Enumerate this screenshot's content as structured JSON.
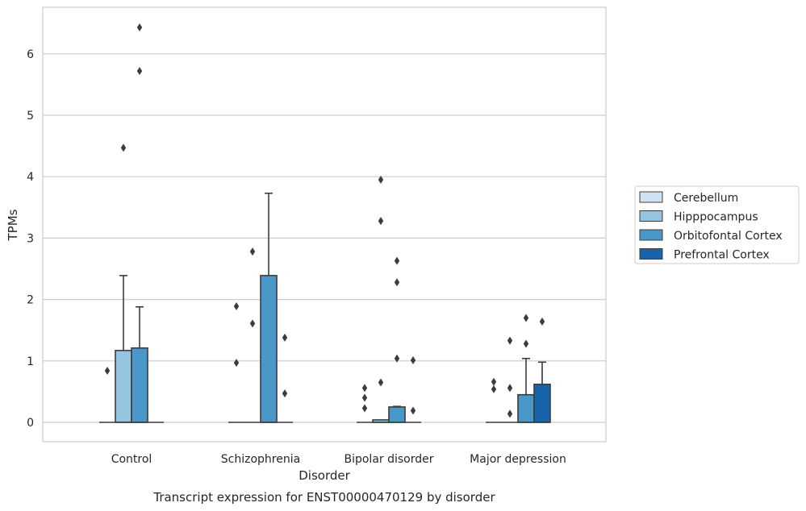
{
  "chart_data": {
    "type": "box",
    "title": "",
    "caption": "Transcript expression for ENST00000470129 by disorder",
    "xlabel": "Disorder",
    "ylabel": "TPMs",
    "ylim": [
      -0.3,
      6.75
    ],
    "yticks": [
      0,
      1,
      2,
      3,
      4,
      5,
      6
    ],
    "grid": true,
    "legend_position": "right",
    "categories": [
      "Control",
      "Schizophrenia",
      "Bipolar disorder",
      "Major depression"
    ],
    "series": [
      {
        "name": "Cerebellum",
        "color": "#d0e1f2",
        "boxes": [
          {
            "category": "Control",
            "q1": 0,
            "median": 0,
            "q3": 0,
            "whisker_low": 0,
            "whisker_high": 0,
            "outliers": [
              0.84
            ]
          },
          {
            "category": "Schizophrenia",
            "q1": 0,
            "median": 0,
            "q3": 0,
            "whisker_low": 0,
            "whisker_high": 0,
            "outliers": [
              1.89,
              0.97
            ]
          },
          {
            "category": "Bipolar disorder",
            "q1": 0,
            "median": 0,
            "q3": 0,
            "whisker_low": 0,
            "whisker_high": 0,
            "outliers": [
              0.56,
              0.4,
              0.23
            ]
          },
          {
            "category": "Major depression",
            "q1": 0,
            "median": 0,
            "q3": 0,
            "whisker_low": 0,
            "whisker_high": 0,
            "outliers": [
              0.66,
              0.54
            ]
          }
        ]
      },
      {
        "name": "Hipppocampus",
        "color": "#94c4df",
        "boxes": [
          {
            "category": "Control",
            "q1": 0,
            "median": 0,
            "q3": 1.17,
            "whisker_low": 0,
            "whisker_high": 2.39,
            "outliers": [
              4.47
            ]
          },
          {
            "category": "Schizophrenia",
            "q1": 0,
            "median": 0,
            "q3": 0,
            "whisker_low": 0,
            "whisker_high": 0,
            "outliers": [
              2.78,
              1.61
            ]
          },
          {
            "category": "Bipolar disorder",
            "q1": 0,
            "median": 0,
            "q3": 0.04,
            "whisker_low": 0,
            "whisker_high": 0.04,
            "outliers": [
              3.95,
              3.28,
              0.65
            ]
          },
          {
            "category": "Major depression",
            "q1": 0,
            "median": 0,
            "q3": 0,
            "whisker_low": 0,
            "whisker_high": 0,
            "outliers": [
              1.33,
              0.56,
              0.14
            ]
          }
        ]
      },
      {
        "name": "Orbitofontal Cortex",
        "color": "#4a98c9",
        "boxes": [
          {
            "category": "Control",
            "q1": 0,
            "median": 0,
            "q3": 1.21,
            "whisker_low": 0,
            "whisker_high": 1.88,
            "outliers": [
              6.43,
              5.72
            ]
          },
          {
            "category": "Schizophrenia",
            "q1": 0,
            "median": 0,
            "q3": 2.39,
            "whisker_low": 0,
            "whisker_high": 3.73,
            "outliers": []
          },
          {
            "category": "Bipolar disorder",
            "q1": 0,
            "median": 0,
            "q3": 0.25,
            "whisker_low": 0,
            "whisker_high": 0.26,
            "outliers": [
              2.63,
              2.28,
              1.04
            ]
          },
          {
            "category": "Major depression",
            "q1": 0,
            "median": 0,
            "q3": 0.45,
            "whisker_low": 0,
            "whisker_high": 1.04,
            "outliers": [
              1.7,
              1.28
            ]
          }
        ]
      },
      {
        "name": "Prefrontal Cortex",
        "color": "#1764ab",
        "boxes": [
          {
            "category": "Control",
            "q1": 0,
            "median": 0,
            "q3": 0,
            "whisker_low": 0,
            "whisker_high": 0,
            "outliers": []
          },
          {
            "category": "Schizophrenia",
            "q1": 0,
            "median": 0,
            "q3": 0,
            "whisker_low": 0,
            "whisker_high": 0,
            "outliers": [
              1.38,
              0.47
            ]
          },
          {
            "category": "Bipolar disorder",
            "q1": 0,
            "median": 0,
            "q3": 0,
            "whisker_low": 0,
            "whisker_high": 0,
            "outliers": [
              1.01,
              0.19
            ]
          },
          {
            "category": "Major depression",
            "q1": 0,
            "median": 0,
            "q3": 0.62,
            "whisker_low": 0,
            "whisker_high": 0.98,
            "outliers": [
              1.64
            ]
          }
        ]
      }
    ]
  }
}
